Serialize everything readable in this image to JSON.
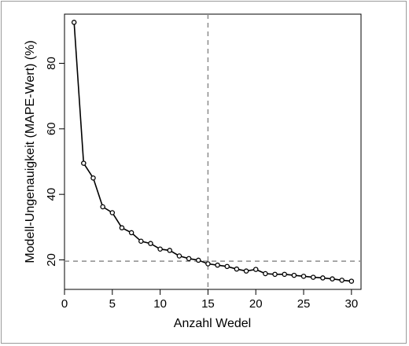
{
  "chart_data": {
    "type": "line",
    "xlabel": "Anzahl Wedel",
    "ylabel": "Modell-Ungenauigkeit (MAPE-Wert) (%)",
    "xlim": [
      0,
      31
    ],
    "ylim": [
      11,
      95
    ],
    "xticks": [
      0,
      5,
      10,
      15,
      20,
      25,
      30
    ],
    "yticks": [
      20,
      40,
      60,
      80
    ],
    "grid": false,
    "legend": "none",
    "marker": "open-circle",
    "line_color": "#000000",
    "reference_lines": {
      "vertical_x": 15,
      "horizontal_y": 19.6,
      "style": "dashed",
      "color": "#8c8c8c"
    },
    "series": [
      {
        "x": [
          1,
          2,
          3,
          4,
          5,
          6,
          7,
          8,
          9,
          10,
          11,
          12,
          13,
          14,
          15,
          16,
          17,
          18,
          19,
          20,
          21,
          22,
          23,
          24,
          25,
          26,
          27,
          28,
          29,
          30
        ],
        "values": [
          92.5,
          49.5,
          45.0,
          36.2,
          34.4,
          29.8,
          28.3,
          25.7,
          25.0,
          23.3,
          22.9,
          21.2,
          20.4,
          19.9,
          18.8,
          18.4,
          18.0,
          17.2,
          16.6,
          17.1,
          15.8,
          15.6,
          15.6,
          15.3,
          15.0,
          14.7,
          14.5,
          14.2,
          13.8,
          13.5
        ]
      }
    ]
  }
}
